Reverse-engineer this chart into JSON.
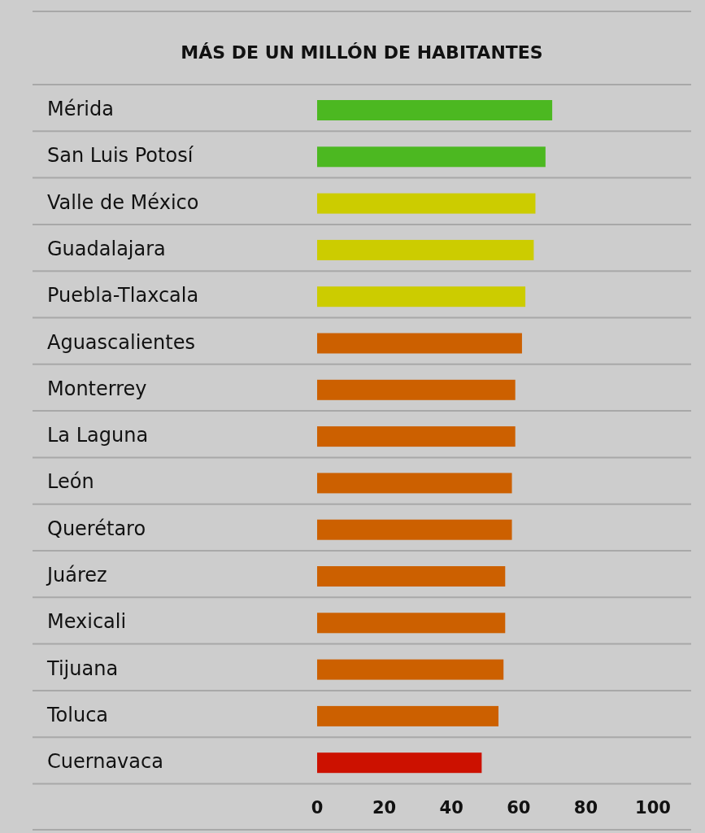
{
  "chart_data": {
    "type": "bar",
    "orientation": "horizontal",
    "title": "MÁS DE UN MILLÓN DE HABITANTES",
    "categories": [
      "Mérida",
      "San Luis Potosí",
      "Valle de México",
      "Guadalajara",
      "Puebla-Tlaxcala",
      "Aguascalientes",
      "Monterrey",
      "La Laguna",
      "León",
      "Querétaro",
      "Juárez",
      "Mexicali",
      "Tijuana",
      "Toluca",
      "Cuernavaca"
    ],
    "values": [
      70,
      68,
      65,
      64.5,
      62,
      61,
      59,
      59,
      58,
      58,
      56,
      56,
      55.5,
      54,
      49
    ],
    "colors": [
      "#4cb821",
      "#4cb821",
      "#cccc00",
      "#cccc00",
      "#cccc00",
      "#cc6000",
      "#cc6000",
      "#cc6000",
      "#cc6000",
      "#cc6000",
      "#cc6000",
      "#cc6000",
      "#cc6000",
      "#cc6000",
      "#cc1100"
    ],
    "xlim": [
      0,
      100
    ],
    "xticks": [
      0,
      20,
      40,
      60,
      80,
      100
    ],
    "grid": "y"
  }
}
